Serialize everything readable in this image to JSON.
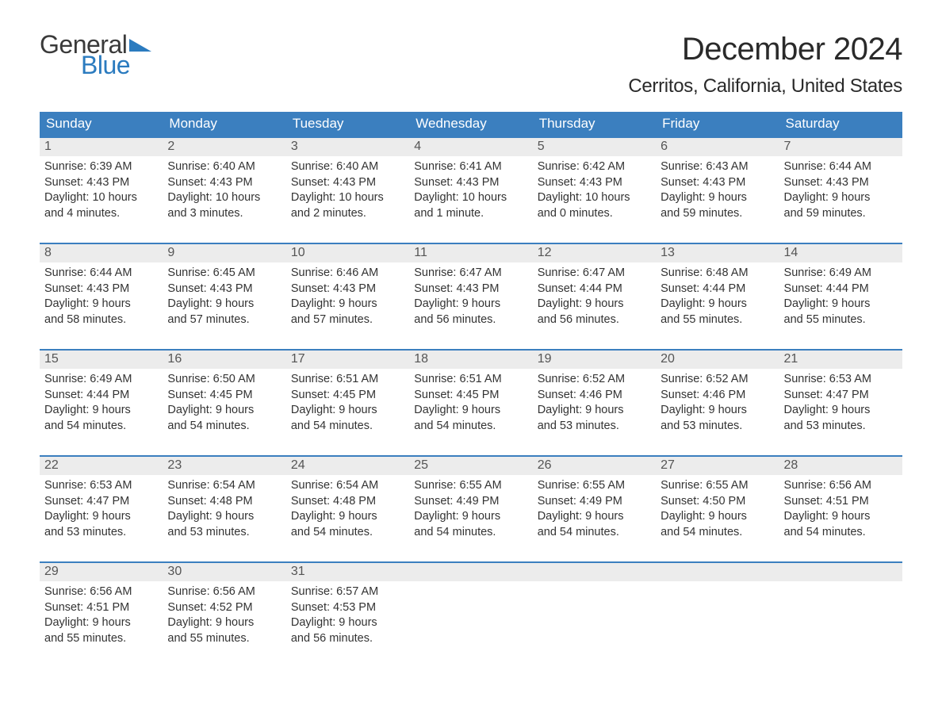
{
  "logo": {
    "word1": "General",
    "word2": "Blue",
    "color_dark": "#3a3a3a",
    "color_blue": "#2b7bbf"
  },
  "title": "December 2024",
  "location": "Cerritos, California, United States",
  "colors": {
    "header_bg": "#3b7fbf",
    "header_text": "#ffffff",
    "daynum_bg": "#ececec",
    "daynum_text": "#555555",
    "body_text": "#333333",
    "rule": "#3b7fbf"
  },
  "day_names": [
    "Sunday",
    "Monday",
    "Tuesday",
    "Wednesday",
    "Thursday",
    "Friday",
    "Saturday"
  ],
  "weeks": [
    [
      {
        "n": "1",
        "sr": "Sunrise: 6:39 AM",
        "ss": "Sunset: 4:43 PM",
        "d1": "Daylight: 10 hours",
        "d2": "and 4 minutes."
      },
      {
        "n": "2",
        "sr": "Sunrise: 6:40 AM",
        "ss": "Sunset: 4:43 PM",
        "d1": "Daylight: 10 hours",
        "d2": "and 3 minutes."
      },
      {
        "n": "3",
        "sr": "Sunrise: 6:40 AM",
        "ss": "Sunset: 4:43 PM",
        "d1": "Daylight: 10 hours",
        "d2": "and 2 minutes."
      },
      {
        "n": "4",
        "sr": "Sunrise: 6:41 AM",
        "ss": "Sunset: 4:43 PM",
        "d1": "Daylight: 10 hours",
        "d2": "and 1 minute."
      },
      {
        "n": "5",
        "sr": "Sunrise: 6:42 AM",
        "ss": "Sunset: 4:43 PM",
        "d1": "Daylight: 10 hours",
        "d2": "and 0 minutes."
      },
      {
        "n": "6",
        "sr": "Sunrise: 6:43 AM",
        "ss": "Sunset: 4:43 PM",
        "d1": "Daylight: 9 hours",
        "d2": "and 59 minutes."
      },
      {
        "n": "7",
        "sr": "Sunrise: 6:44 AM",
        "ss": "Sunset: 4:43 PM",
        "d1": "Daylight: 9 hours",
        "d2": "and 59 minutes."
      }
    ],
    [
      {
        "n": "8",
        "sr": "Sunrise: 6:44 AM",
        "ss": "Sunset: 4:43 PM",
        "d1": "Daylight: 9 hours",
        "d2": "and 58 minutes."
      },
      {
        "n": "9",
        "sr": "Sunrise: 6:45 AM",
        "ss": "Sunset: 4:43 PM",
        "d1": "Daylight: 9 hours",
        "d2": "and 57 minutes."
      },
      {
        "n": "10",
        "sr": "Sunrise: 6:46 AM",
        "ss": "Sunset: 4:43 PM",
        "d1": "Daylight: 9 hours",
        "d2": "and 57 minutes."
      },
      {
        "n": "11",
        "sr": "Sunrise: 6:47 AM",
        "ss": "Sunset: 4:43 PM",
        "d1": "Daylight: 9 hours",
        "d2": "and 56 minutes."
      },
      {
        "n": "12",
        "sr": "Sunrise: 6:47 AM",
        "ss": "Sunset: 4:44 PM",
        "d1": "Daylight: 9 hours",
        "d2": "and 56 minutes."
      },
      {
        "n": "13",
        "sr": "Sunrise: 6:48 AM",
        "ss": "Sunset: 4:44 PM",
        "d1": "Daylight: 9 hours",
        "d2": "and 55 minutes."
      },
      {
        "n": "14",
        "sr": "Sunrise: 6:49 AM",
        "ss": "Sunset: 4:44 PM",
        "d1": "Daylight: 9 hours",
        "d2": "and 55 minutes."
      }
    ],
    [
      {
        "n": "15",
        "sr": "Sunrise: 6:49 AM",
        "ss": "Sunset: 4:44 PM",
        "d1": "Daylight: 9 hours",
        "d2": "and 54 minutes."
      },
      {
        "n": "16",
        "sr": "Sunrise: 6:50 AM",
        "ss": "Sunset: 4:45 PM",
        "d1": "Daylight: 9 hours",
        "d2": "and 54 minutes."
      },
      {
        "n": "17",
        "sr": "Sunrise: 6:51 AM",
        "ss": "Sunset: 4:45 PM",
        "d1": "Daylight: 9 hours",
        "d2": "and 54 minutes."
      },
      {
        "n": "18",
        "sr": "Sunrise: 6:51 AM",
        "ss": "Sunset: 4:45 PM",
        "d1": "Daylight: 9 hours",
        "d2": "and 54 minutes."
      },
      {
        "n": "19",
        "sr": "Sunrise: 6:52 AM",
        "ss": "Sunset: 4:46 PM",
        "d1": "Daylight: 9 hours",
        "d2": "and 53 minutes."
      },
      {
        "n": "20",
        "sr": "Sunrise: 6:52 AM",
        "ss": "Sunset: 4:46 PM",
        "d1": "Daylight: 9 hours",
        "d2": "and 53 minutes."
      },
      {
        "n": "21",
        "sr": "Sunrise: 6:53 AM",
        "ss": "Sunset: 4:47 PM",
        "d1": "Daylight: 9 hours",
        "d2": "and 53 minutes."
      }
    ],
    [
      {
        "n": "22",
        "sr": "Sunrise: 6:53 AM",
        "ss": "Sunset: 4:47 PM",
        "d1": "Daylight: 9 hours",
        "d2": "and 53 minutes."
      },
      {
        "n": "23",
        "sr": "Sunrise: 6:54 AM",
        "ss": "Sunset: 4:48 PM",
        "d1": "Daylight: 9 hours",
        "d2": "and 53 minutes."
      },
      {
        "n": "24",
        "sr": "Sunrise: 6:54 AM",
        "ss": "Sunset: 4:48 PM",
        "d1": "Daylight: 9 hours",
        "d2": "and 54 minutes."
      },
      {
        "n": "25",
        "sr": "Sunrise: 6:55 AM",
        "ss": "Sunset: 4:49 PM",
        "d1": "Daylight: 9 hours",
        "d2": "and 54 minutes."
      },
      {
        "n": "26",
        "sr": "Sunrise: 6:55 AM",
        "ss": "Sunset: 4:49 PM",
        "d1": "Daylight: 9 hours",
        "d2": "and 54 minutes."
      },
      {
        "n": "27",
        "sr": "Sunrise: 6:55 AM",
        "ss": "Sunset: 4:50 PM",
        "d1": "Daylight: 9 hours",
        "d2": "and 54 minutes."
      },
      {
        "n": "28",
        "sr": "Sunrise: 6:56 AM",
        "ss": "Sunset: 4:51 PM",
        "d1": "Daylight: 9 hours",
        "d2": "and 54 minutes."
      }
    ],
    [
      {
        "n": "29",
        "sr": "Sunrise: 6:56 AM",
        "ss": "Sunset: 4:51 PM",
        "d1": "Daylight: 9 hours",
        "d2": "and 55 minutes."
      },
      {
        "n": "30",
        "sr": "Sunrise: 6:56 AM",
        "ss": "Sunset: 4:52 PM",
        "d1": "Daylight: 9 hours",
        "d2": "and 55 minutes."
      },
      {
        "n": "31",
        "sr": "Sunrise: 6:57 AM",
        "ss": "Sunset: 4:53 PM",
        "d1": "Daylight: 9 hours",
        "d2": "and 56 minutes."
      },
      {
        "empty": true
      },
      {
        "empty": true
      },
      {
        "empty": true
      },
      {
        "empty": true
      }
    ]
  ]
}
